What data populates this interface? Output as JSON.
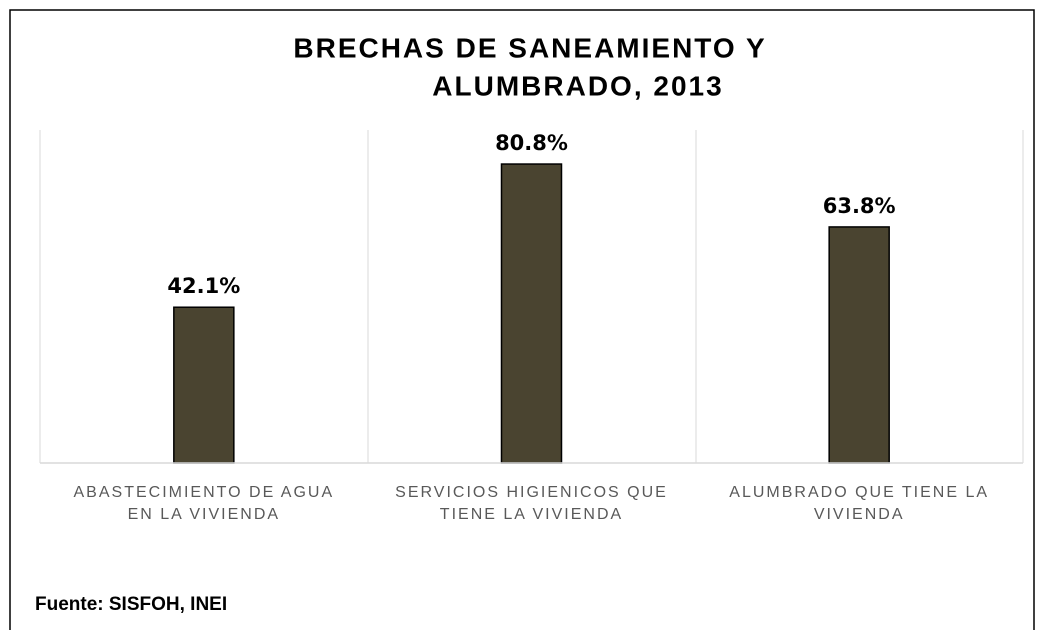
{
  "chart_data": {
    "type": "bar",
    "title": [
      "BRECHAS DE SANEAMIENTO Y",
      "ALUMBRADO, 2013"
    ],
    "categories": [
      [
        "ABASTECIMIENTO DE AGUA",
        "EN LA VIVIENDA"
      ],
      [
        "SERVICIOS HIGIENICOS QUE",
        "TIENE LA VIVIENDA"
      ],
      [
        "ALUMBRADO QUE TIENE LA",
        "VIVIENDA"
      ]
    ],
    "values": [
      42.1,
      80.8,
      63.8
    ],
    "value_labels": [
      "42.1%",
      "80.8%",
      "63.8%"
    ],
    "color": "#4a4430",
    "ylim": [
      0,
      90
    ],
    "source": "Fuente: SISFOH, INEI"
  }
}
